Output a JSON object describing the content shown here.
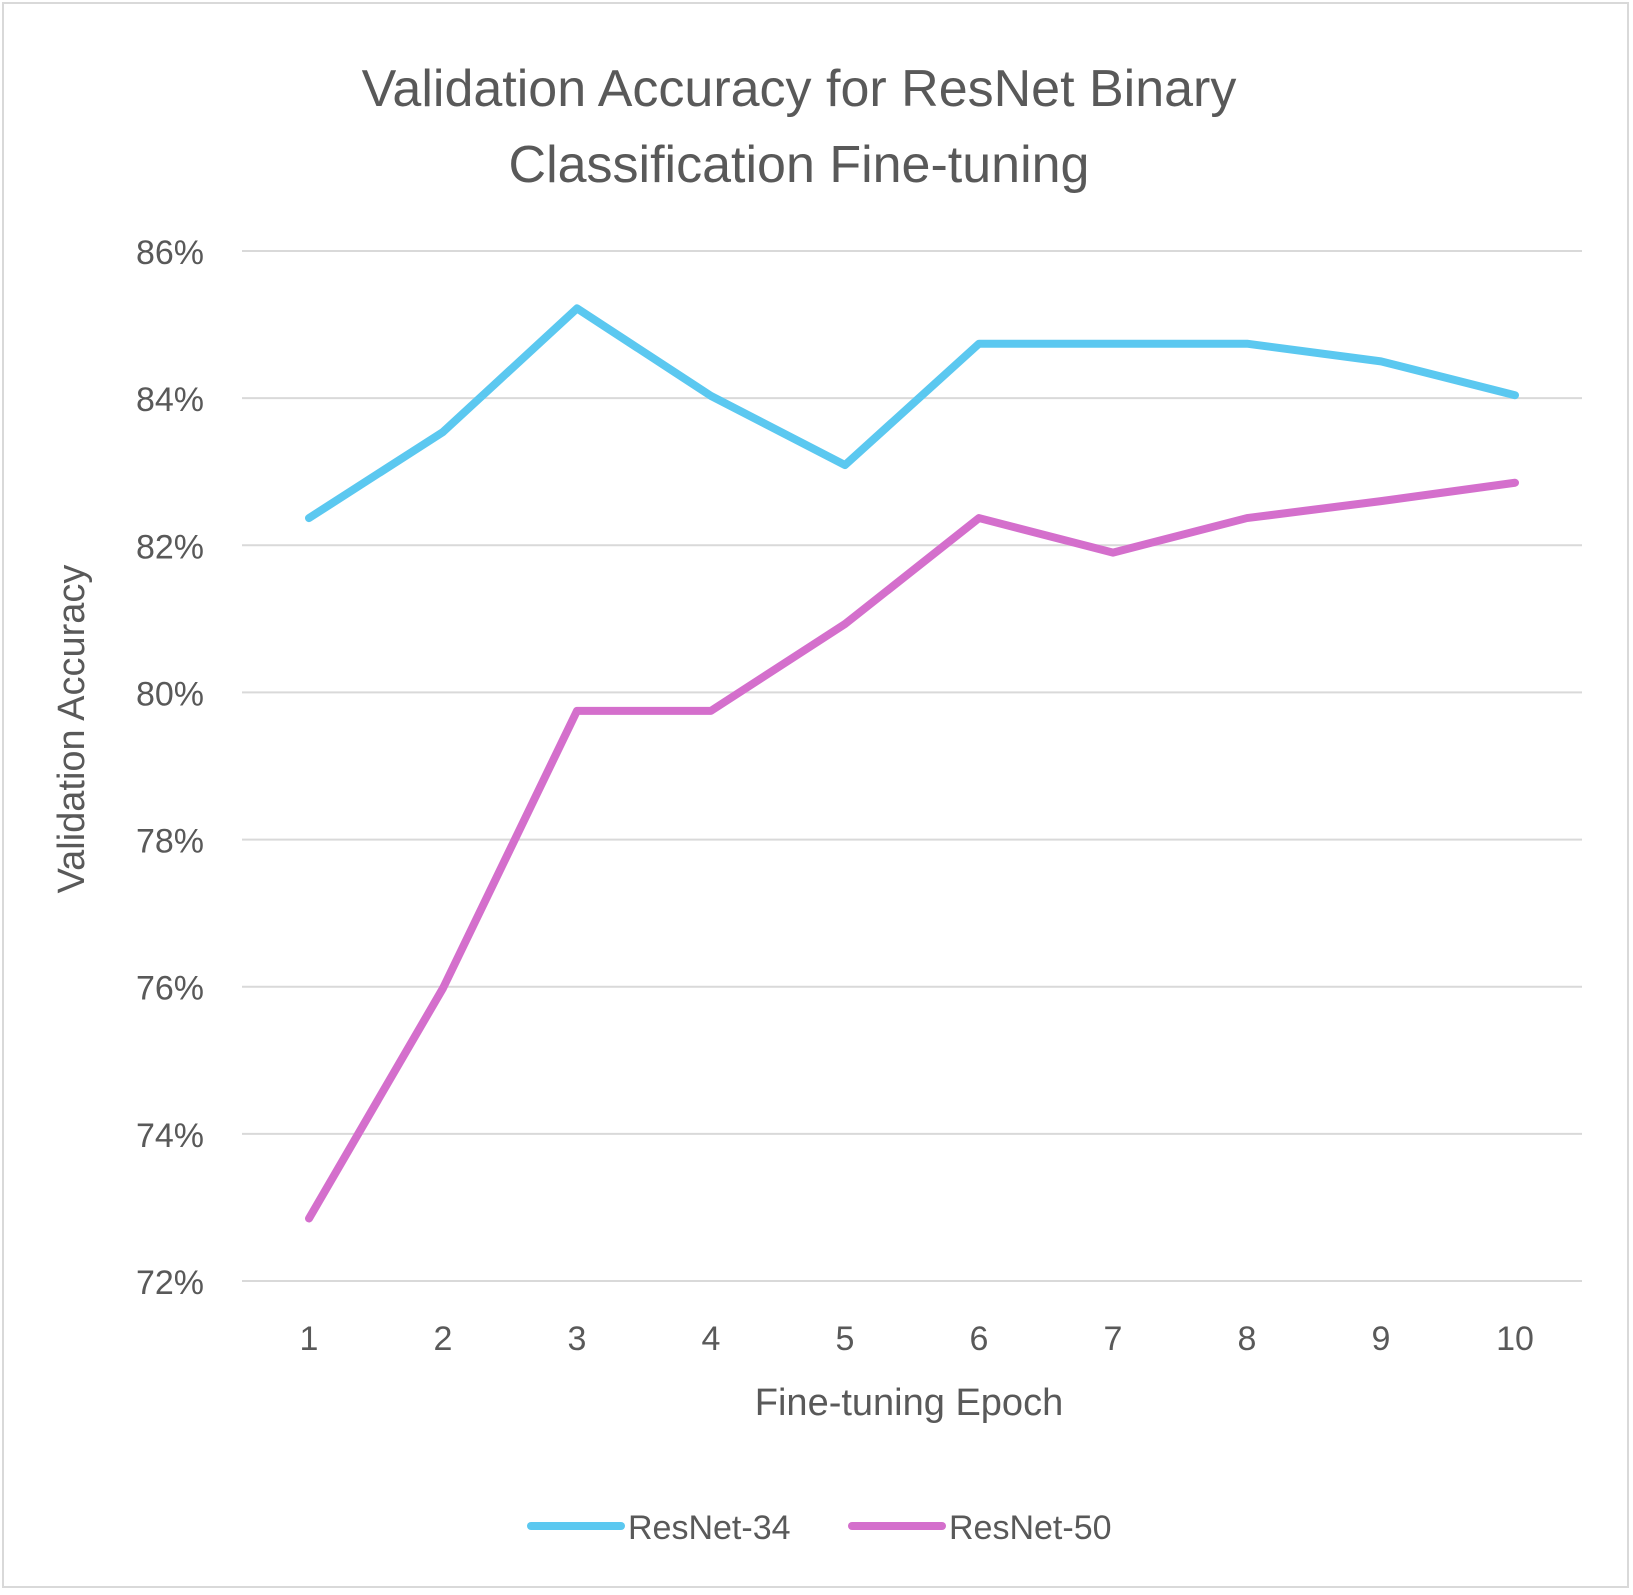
{
  "chart_data": {
    "type": "line",
    "title_lines": [
      "Validation Accuracy for ResNet Binary",
      "Classification Fine-tuning"
    ],
    "xlabel": "Fine-tuning Epoch",
    "ylabel": "Validation Accuracy",
    "x": [
      1,
      2,
      3,
      4,
      5,
      6,
      7,
      8,
      9,
      10
    ],
    "x_tick_labels": [
      "1",
      "2",
      "3",
      "4",
      "5",
      "6",
      "7",
      "8",
      "9",
      "10"
    ],
    "ylim": [
      0.72,
      0.86
    ],
    "y_ticks": [
      0.72,
      0.74,
      0.76,
      0.78,
      0.8,
      0.82,
      0.84,
      0.86
    ],
    "y_tick_labels": [
      "72%",
      "74%",
      "76%",
      "78%",
      "80%",
      "82%",
      "84%",
      "86%"
    ],
    "grid": true,
    "legend_position": "bottom",
    "series": [
      {
        "name": "ResNet-34",
        "color": "#5bc8f0",
        "values": [
          0.8237,
          0.8354,
          0.8522,
          0.8403,
          0.8309,
          0.8474,
          0.8474,
          0.8474,
          0.845,
          0.8404
        ]
      },
      {
        "name": "ResNet-50",
        "color": "#d46fcc",
        "values": [
          0.7285,
          0.7598,
          0.7975,
          0.7975,
          0.8093,
          0.8237,
          0.819,
          0.8237,
          0.826,
          0.8285
        ]
      }
    ]
  }
}
